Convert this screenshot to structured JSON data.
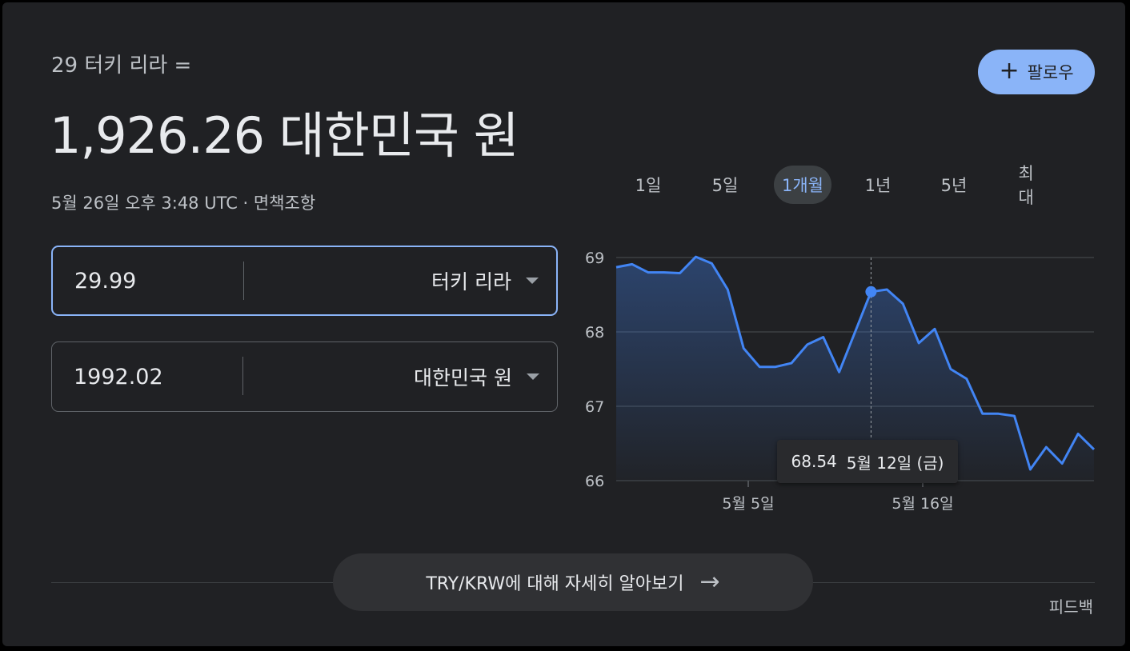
{
  "header": {
    "subtitle": "29 터키 리라 =",
    "main_value": "1,926.26 대한민국 원",
    "timestamp": "5월 26일 오후 3:48 UTC · 면책조항"
  },
  "follow_button": {
    "icon": "plus-icon",
    "label": "팔로우"
  },
  "converter": {
    "from": {
      "amount": "29.99",
      "currency": "터키 리라"
    },
    "to": {
      "amount": "1992.02",
      "currency": "대한민국 원"
    }
  },
  "range_tabs": [
    {
      "label": "1일",
      "selected": false
    },
    {
      "label": "5일",
      "selected": false
    },
    {
      "label": "1개월",
      "selected": true
    },
    {
      "label": "1년",
      "selected": false
    },
    {
      "label": "5년",
      "selected": false
    },
    {
      "label": "최대",
      "selected": false
    }
  ],
  "chart_data": {
    "type": "area",
    "x_labels": [
      "5월 5일",
      "5월 16일"
    ],
    "ylim": [
      66,
      69
    ],
    "y_ticks": [
      69,
      68,
      67,
      66
    ],
    "grid": true,
    "line_color": "#4285f4",
    "values": [
      68.87,
      68.91,
      68.8,
      68.8,
      68.79,
      69.01,
      68.92,
      68.57,
      67.78,
      67.53,
      67.53,
      67.58,
      67.83,
      67.93,
      67.46,
      68.0,
      68.54,
      68.57,
      68.38,
      67.85,
      68.04,
      67.5,
      67.37,
      66.9,
      66.9,
      66.87,
      66.15,
      66.45,
      66.23,
      66.63,
      66.42
    ],
    "highlight": {
      "index": 16,
      "value": "68.54",
      "date": "5월 12일 (금)"
    }
  },
  "learn_more": {
    "label": "TRY/KRW에 대해 자세히 알아보기",
    "icon": "arrow-right-icon"
  },
  "feedback": {
    "label": "피드백"
  }
}
